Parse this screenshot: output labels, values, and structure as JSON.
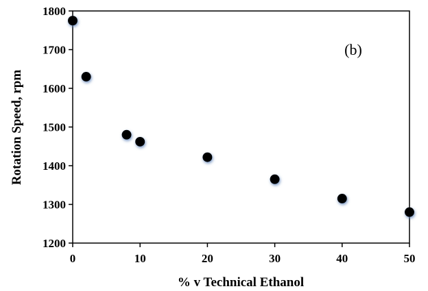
{
  "chart_data": {
    "type": "scatter",
    "xlabel": "% v Technical Ethanol",
    "ylabel": "Rotation Speed, rpm",
    "annotation": "(b)",
    "xlim": [
      0,
      50
    ],
    "ylim": [
      1200,
      1800
    ],
    "xticks": [
      0,
      10,
      20,
      30,
      40,
      50
    ],
    "yticks": [
      1200,
      1300,
      1400,
      1500,
      1600,
      1700,
      1800
    ],
    "grid": false,
    "marker_color": "#000000",
    "marker_glow": "#5b7fb5",
    "series": [
      {
        "x": [
          0,
          2,
          8,
          10,
          20,
          30,
          40,
          50
        ],
        "y": [
          1775,
          1630,
          1480,
          1462,
          1422,
          1365,
          1315,
          1280
        ]
      }
    ]
  }
}
